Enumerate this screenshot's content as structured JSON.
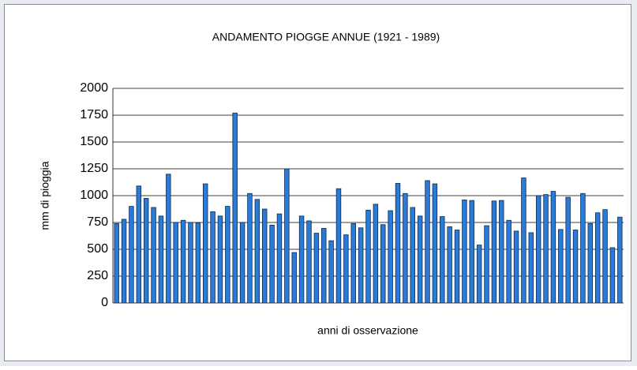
{
  "chart_data": {
    "type": "bar",
    "title": "ANDAMENTO PIOGGE ANNUE  (1921 - 1989)",
    "x_label": "anni di osservazione",
    "y_label": "mm di pioggia",
    "categories": [
      null,
      null,
      null,
      null,
      null,
      null,
      null,
      null,
      null,
      null,
      null,
      null,
      null,
      null,
      null,
      null,
      null,
      null,
      null,
      null,
      null,
      null,
      null,
      null,
      null,
      null,
      null,
      null,
      null,
      null,
      null,
      null,
      null,
      null,
      null,
      null,
      null,
      null,
      null,
      null,
      null,
      null,
      null,
      null,
      null,
      null,
      null,
      null,
      null,
      null,
      null,
      null,
      null,
      null,
      null,
      null,
      null,
      null,
      null,
      null,
      null,
      null,
      null,
      null,
      null,
      null,
      null,
      null,
      null
    ],
    "values": [
      740,
      780,
      900,
      1090,
      975,
      890,
      810,
      1200,
      750,
      770,
      750,
      745,
      1110,
      850,
      810,
      900,
      1770,
      750,
      1020,
      965,
      875,
      725,
      830,
      1250,
      470,
      810,
      765,
      650,
      695,
      580,
      1065,
      635,
      740,
      700,
      865,
      920,
      730,
      860,
      1115,
      1020,
      890,
      810,
      1140,
      1110,
      805,
      710,
      680,
      960,
      955,
      540,
      720,
      950,
      955,
      770,
      670,
      1165,
      655,
      1000,
      1010,
      1040,
      685,
      985,
      680,
      1020,
      740,
      840,
      870,
      515,
      800
    ],
    "color": "#2a7bd6",
    "ylim": [
      0,
      2000
    ],
    "yticks": [
      0,
      250,
      500,
      750,
      1000,
      1250,
      1500,
      1750,
      2000
    ],
    "grid": true
  }
}
